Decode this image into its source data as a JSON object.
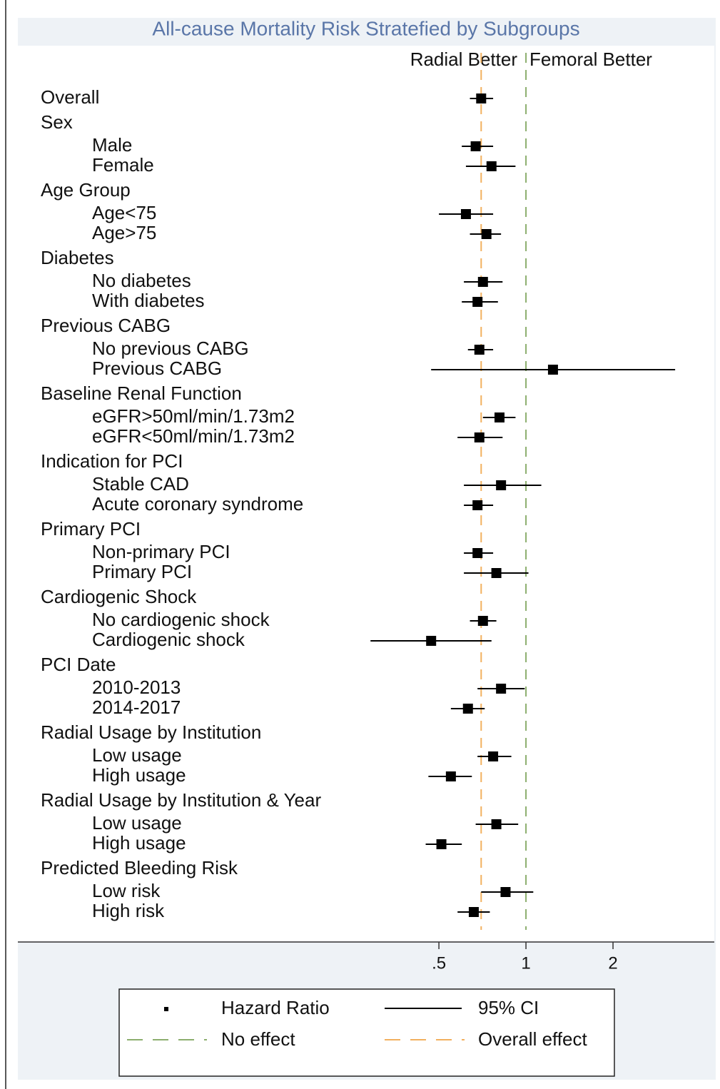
{
  "chart_data": {
    "type": "forest",
    "title": "All-cause Mortality Risk Stratefied by Subgroups",
    "left_label": "Radial Better",
    "right_label": "Femoral Better",
    "xscale": "log",
    "xlim": [
      0.26,
      4.48
    ],
    "xticks": [
      {
        "value": 0.5,
        "label": ".5"
      },
      1,
      2
    ],
    "no_effect": 1,
    "overall_effect": 0.7,
    "colors": {
      "marker": "#000000",
      "no_effect": "#8cae6e",
      "overall_effect": "#f2b05e",
      "title": "#5a76a8"
    },
    "legend": {
      "hr": "Hazard Ratio",
      "ci": "95% CI",
      "no_effect": "No effect",
      "overall_effect": "Overall effect"
    },
    "groups": [
      {
        "name": "Overall",
        "hr": 0.7,
        "ci": [
          0.64,
          0.77
        ]
      },
      {
        "name": "Sex",
        "subgroups": [
          {
            "label": "Male",
            "hr": 0.67,
            "ci": [
              0.6,
              0.77
            ]
          },
          {
            "label": "Female",
            "hr": 0.76,
            "ci": [
              0.62,
              0.92
            ]
          }
        ]
      },
      {
        "name": "Age Group",
        "subgroups": [
          {
            "label": "Age<75",
            "hr": 0.62,
            "ci": [
              0.5,
              0.77
            ]
          },
          {
            "label": "Age>75",
            "hr": 0.73,
            "ci": [
              0.64,
              0.82
            ]
          }
        ]
      },
      {
        "name": "Diabetes",
        "subgroups": [
          {
            "label": "No diabetes",
            "hr": 0.71,
            "ci": [
              0.61,
              0.83
            ]
          },
          {
            "label": "With diabetes",
            "hr": 0.68,
            "ci": [
              0.6,
              0.8
            ]
          }
        ]
      },
      {
        "name": "Previous CABG",
        "subgroups": [
          {
            "label": "No previous CABG",
            "hr": 0.69,
            "ci": [
              0.63,
              0.77
            ]
          },
          {
            "label": "Previous CABG",
            "hr": 1.24,
            "ci": [
              0.47,
              3.28
            ]
          }
        ]
      },
      {
        "name": "Baseline Renal Function",
        "subgroups": [
          {
            "label": "eGFR>50ml/min/1.73m2",
            "hr": 0.81,
            "ci": [
              0.71,
              0.92
            ]
          },
          {
            "label": "eGFR<50ml/min/1.73m2",
            "hr": 0.69,
            "ci": [
              0.58,
              0.83
            ]
          }
        ]
      },
      {
        "name": "Indication for PCI",
        "subgroups": [
          {
            "label": "Stable CAD",
            "hr": 0.82,
            "ci": [
              0.61,
              1.13
            ]
          },
          {
            "label": "Acute coronary syndrome",
            "hr": 0.68,
            "ci": [
              0.61,
              0.77
            ]
          }
        ]
      },
      {
        "name": "Primary PCI",
        "subgroups": [
          {
            "label": "Non-primary PCI",
            "hr": 0.68,
            "ci": [
              0.61,
              0.77
            ]
          },
          {
            "label": "Primary PCI",
            "hr": 0.79,
            "ci": [
              0.61,
              1.02
            ]
          }
        ]
      },
      {
        "name": "Cardiogenic Shock",
        "subgroups": [
          {
            "label": "No cardiogenic shock",
            "hr": 0.71,
            "ci": [
              0.64,
              0.79
            ]
          },
          {
            "label": "Cardiogenic shock",
            "hr": 0.47,
            "ci": [
              0.29,
              0.76
            ]
          }
        ]
      },
      {
        "name": "PCI Date",
        "subgroups": [
          {
            "label": "2010-2013",
            "hr": 0.82,
            "ci": [
              0.68,
              0.99
            ]
          },
          {
            "label": "2014-2017",
            "hr": 0.63,
            "ci": [
              0.55,
              0.72
            ]
          }
        ]
      },
      {
        "name": "Radial Usage by Institution",
        "subgroups": [
          {
            "label": "Low usage",
            "hr": 0.77,
            "ci": [
              0.68,
              0.89
            ]
          },
          {
            "label": "High usage",
            "hr": 0.55,
            "ci": [
              0.46,
              0.65
            ]
          }
        ]
      },
      {
        "name": "Radial Usage by Institution & Year",
        "subgroups": [
          {
            "label": "Low usage",
            "hr": 0.79,
            "ci": [
              0.67,
              0.94
            ]
          },
          {
            "label": "High usage",
            "hr": 0.51,
            "ci": [
              0.45,
              0.6
            ]
          }
        ]
      },
      {
        "name": "Predicted Bleeding Risk",
        "subgroups": [
          {
            "label": "Low risk",
            "hr": 0.85,
            "ci": [
              0.7,
              1.06
            ]
          },
          {
            "label": "High risk",
            "hr": 0.66,
            "ci": [
              0.58,
              0.75
            ]
          }
        ]
      }
    ]
  }
}
